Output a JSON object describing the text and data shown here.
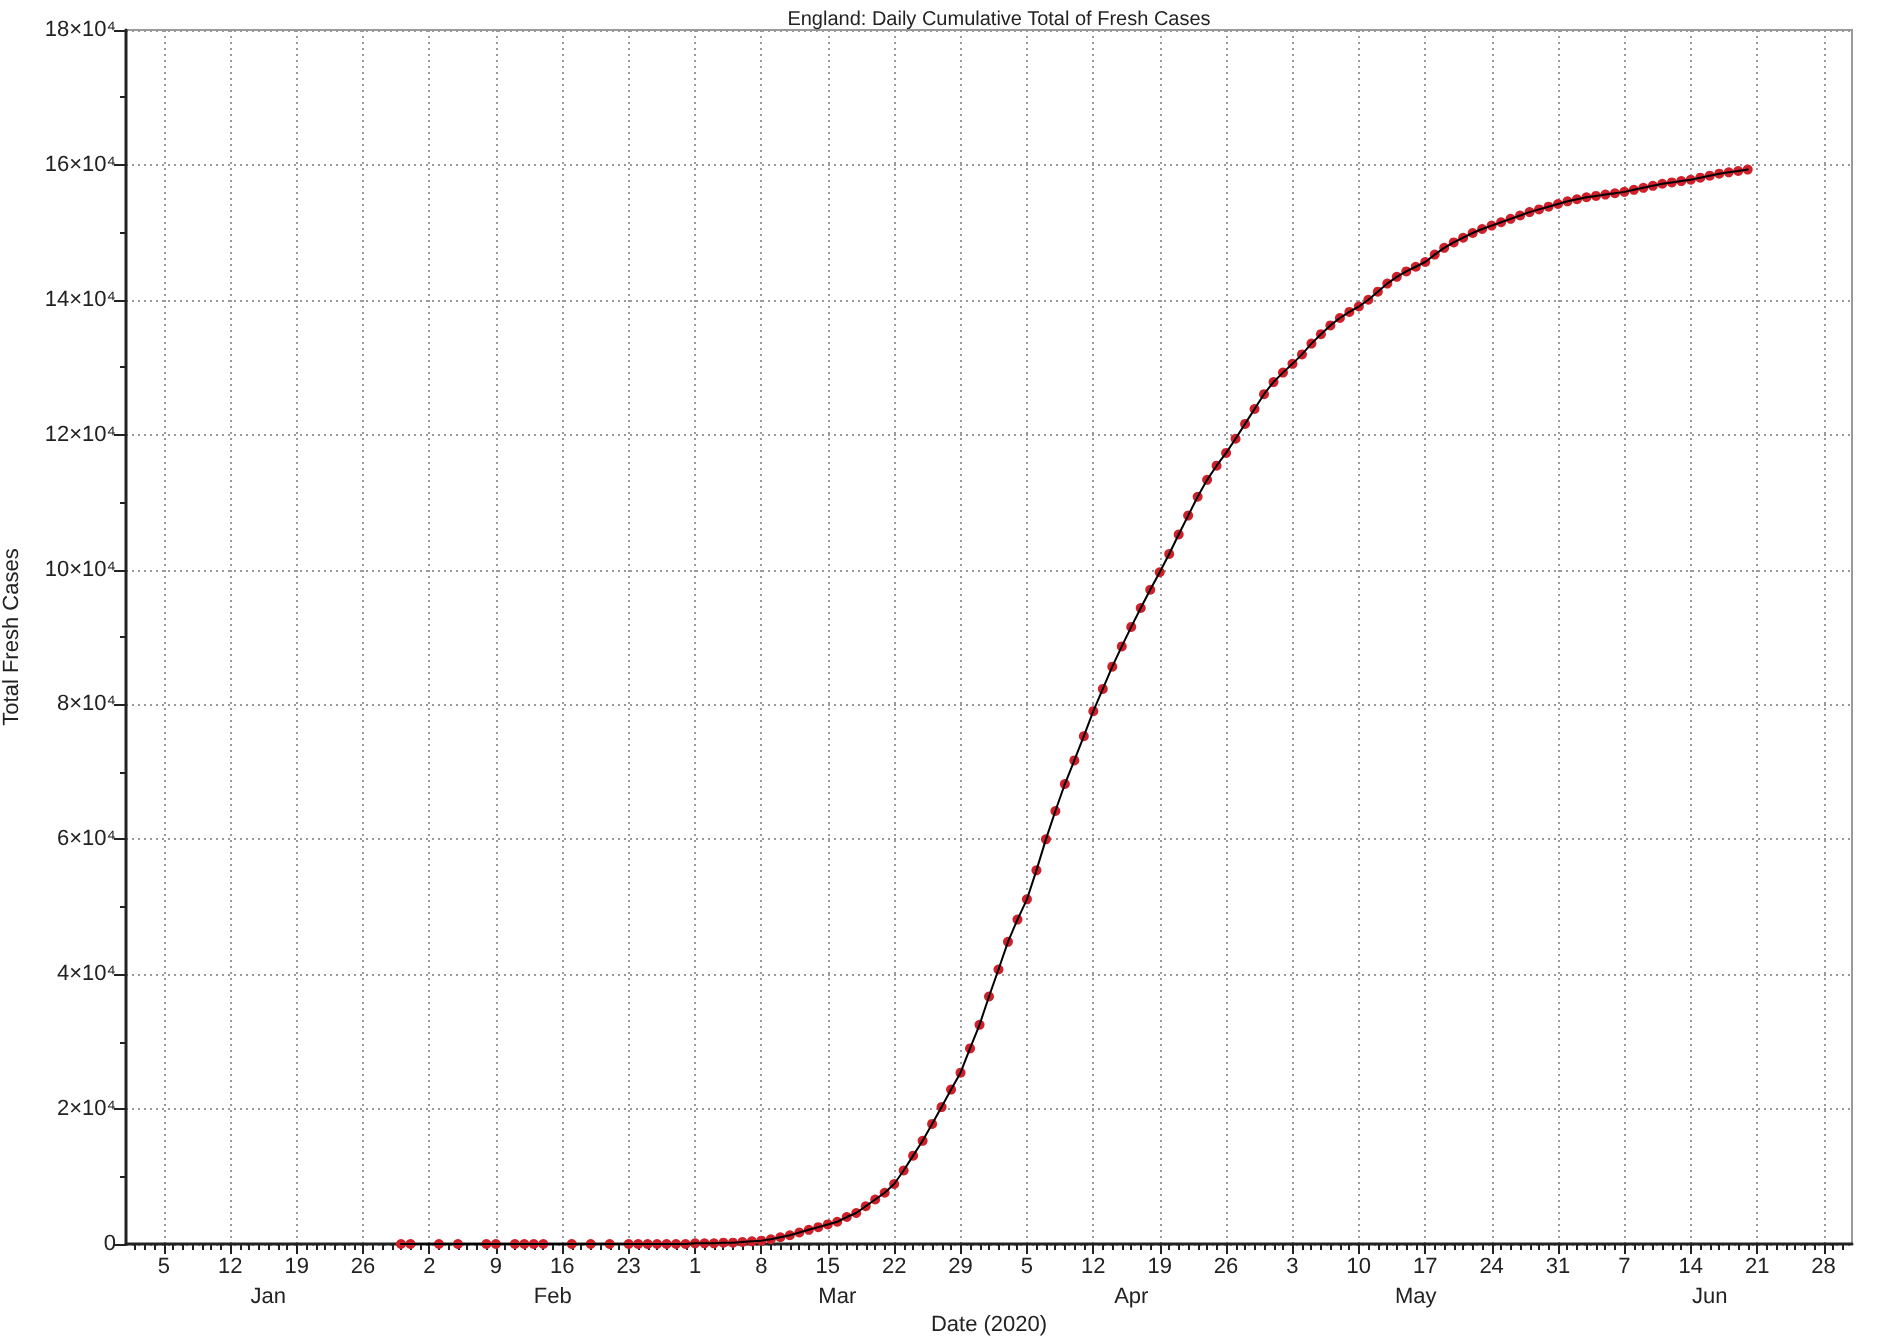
{
  "chart_data": {
    "type": "line",
    "title": "England: Daily Cumulative Total of Fresh Cases",
    "xlabel": "Date (2020)",
    "ylabel": "Total Fresh Cases",
    "grid": true,
    "marker": "circle",
    "xlim": [
      "2020-01-01",
      "2020-07-01"
    ],
    "ylim": [
      0,
      180000
    ],
    "xticks": [
      {
        "value": "2020-01-02",
        "label": null
      },
      {
        "value": "2020-01-03",
        "label": null
      },
      {
        "value": "2020-01-04",
        "label": null
      },
      {
        "value": "2020-01-05",
        "label": "5"
      },
      {
        "value": "2020-01-06",
        "label": null
      },
      {
        "value": "2020-01-07",
        "label": null
      },
      {
        "value": "2020-01-08",
        "label": null
      },
      {
        "value": "2020-01-09",
        "label": null
      },
      {
        "value": "2020-01-10",
        "label": null
      },
      {
        "value": "2020-01-11",
        "label": null
      },
      {
        "value": "2020-01-12",
        "label": "12"
      },
      {
        "value": "2020-01-13",
        "label": null
      },
      {
        "value": "2020-01-14",
        "label": null
      },
      {
        "value": "2020-01-15",
        "label": null
      },
      {
        "value": "2020-01-16",
        "label": null
      },
      {
        "value": "2020-01-17",
        "label": null
      },
      {
        "value": "2020-01-18",
        "label": null
      },
      {
        "value": "2020-01-19",
        "label": "19"
      },
      {
        "value": "2020-01-20",
        "label": null
      },
      {
        "value": "2020-01-21",
        "label": null
      },
      {
        "value": "2020-01-22",
        "label": null
      },
      {
        "value": "2020-01-23",
        "label": null
      },
      {
        "value": "2020-01-24",
        "label": null
      },
      {
        "value": "2020-01-25",
        "label": null
      },
      {
        "value": "2020-01-26",
        "label": "26"
      },
      {
        "value": "2020-01-27",
        "label": null
      },
      {
        "value": "2020-01-28",
        "label": null
      },
      {
        "value": "2020-01-29",
        "label": null
      },
      {
        "value": "2020-01-30",
        "label": null
      },
      {
        "value": "2020-01-31",
        "label": null
      },
      {
        "value": "2020-02-01",
        "label": null
      },
      {
        "value": "2020-02-02",
        "label": "2"
      },
      {
        "value": "2020-02-03",
        "label": null
      },
      {
        "value": "2020-02-04",
        "label": null
      },
      {
        "value": "2020-02-05",
        "label": null
      },
      {
        "value": "2020-02-06",
        "label": null
      },
      {
        "value": "2020-02-07",
        "label": null
      },
      {
        "value": "2020-02-08",
        "label": null
      },
      {
        "value": "2020-02-09",
        "label": "9"
      },
      {
        "value": "2020-02-10",
        "label": null
      },
      {
        "value": "2020-02-11",
        "label": null
      },
      {
        "value": "2020-02-12",
        "label": null
      },
      {
        "value": "2020-02-13",
        "label": null
      },
      {
        "value": "2020-02-14",
        "label": null
      },
      {
        "value": "2020-02-15",
        "label": null
      },
      {
        "value": "2020-02-16",
        "label": "16"
      },
      {
        "value": "2020-02-17",
        "label": null
      },
      {
        "value": "2020-02-18",
        "label": null
      },
      {
        "value": "2020-02-19",
        "label": null
      },
      {
        "value": "2020-02-20",
        "label": null
      },
      {
        "value": "2020-02-21",
        "label": null
      },
      {
        "value": "2020-02-22",
        "label": null
      },
      {
        "value": "2020-02-23",
        "label": "23"
      },
      {
        "value": "2020-02-24",
        "label": null
      },
      {
        "value": "2020-02-25",
        "label": null
      },
      {
        "value": "2020-02-26",
        "label": null
      },
      {
        "value": "2020-02-27",
        "label": null
      },
      {
        "value": "2020-02-28",
        "label": null
      },
      {
        "value": "2020-02-29",
        "label": null
      },
      {
        "value": "2020-03-01",
        "label": "1"
      },
      {
        "value": "2020-03-02",
        "label": null
      },
      {
        "value": "2020-03-03",
        "label": null
      },
      {
        "value": "2020-03-04",
        "label": null
      },
      {
        "value": "2020-03-05",
        "label": null
      },
      {
        "value": "2020-03-06",
        "label": null
      },
      {
        "value": "2020-03-07",
        "label": null
      },
      {
        "value": "2020-03-08",
        "label": "8"
      },
      {
        "value": "2020-03-09",
        "label": null
      },
      {
        "value": "2020-03-10",
        "label": null
      },
      {
        "value": "2020-03-11",
        "label": null
      },
      {
        "value": "2020-03-12",
        "label": null
      },
      {
        "value": "2020-03-13",
        "label": null
      },
      {
        "value": "2020-03-14",
        "label": null
      },
      {
        "value": "2020-03-15",
        "label": "15"
      },
      {
        "value": "2020-03-16",
        "label": null
      },
      {
        "value": "2020-03-17",
        "label": null
      },
      {
        "value": "2020-03-18",
        "label": null
      },
      {
        "value": "2020-03-19",
        "label": null
      },
      {
        "value": "2020-03-20",
        "label": null
      },
      {
        "value": "2020-03-21",
        "label": null
      },
      {
        "value": "2020-03-22",
        "label": "22"
      },
      {
        "value": "2020-03-23",
        "label": null
      },
      {
        "value": "2020-03-24",
        "label": null
      },
      {
        "value": "2020-03-25",
        "label": null
      },
      {
        "value": "2020-03-26",
        "label": null
      },
      {
        "value": "2020-03-27",
        "label": null
      },
      {
        "value": "2020-03-28",
        "label": null
      },
      {
        "value": "2020-03-29",
        "label": "29"
      },
      {
        "value": "2020-03-30",
        "label": null
      },
      {
        "value": "2020-03-31",
        "label": null
      },
      {
        "value": "2020-04-01",
        "label": null
      },
      {
        "value": "2020-04-02",
        "label": null
      },
      {
        "value": "2020-04-03",
        "label": null
      },
      {
        "value": "2020-04-04",
        "label": null
      },
      {
        "value": "2020-04-05",
        "label": "5"
      },
      {
        "value": "2020-04-06",
        "label": null
      },
      {
        "value": "2020-04-07",
        "label": null
      },
      {
        "value": "2020-04-08",
        "label": null
      },
      {
        "value": "2020-04-09",
        "label": null
      },
      {
        "value": "2020-04-10",
        "label": null
      },
      {
        "value": "2020-04-11",
        "label": null
      },
      {
        "value": "2020-04-12",
        "label": "12"
      },
      {
        "value": "2020-04-13",
        "label": null
      },
      {
        "value": "2020-04-14",
        "label": null
      },
      {
        "value": "2020-04-15",
        "label": null
      },
      {
        "value": "2020-04-16",
        "label": null
      },
      {
        "value": "2020-04-17",
        "label": null
      },
      {
        "value": "2020-04-18",
        "label": null
      },
      {
        "value": "2020-04-19",
        "label": "19"
      },
      {
        "value": "2020-04-20",
        "label": null
      },
      {
        "value": "2020-04-21",
        "label": null
      },
      {
        "value": "2020-04-22",
        "label": null
      },
      {
        "value": "2020-04-23",
        "label": null
      },
      {
        "value": "2020-04-24",
        "label": null
      },
      {
        "value": "2020-04-25",
        "label": null
      },
      {
        "value": "2020-04-26",
        "label": "26"
      },
      {
        "value": "2020-04-27",
        "label": null
      },
      {
        "value": "2020-04-28",
        "label": null
      },
      {
        "value": "2020-04-29",
        "label": null
      },
      {
        "value": "2020-04-30",
        "label": null
      },
      {
        "value": "2020-05-01",
        "label": null
      },
      {
        "value": "2020-05-02",
        "label": null
      },
      {
        "value": "2020-05-03",
        "label": "3"
      },
      {
        "value": "2020-05-04",
        "label": null
      },
      {
        "value": "2020-05-05",
        "label": null
      },
      {
        "value": "2020-05-06",
        "label": null
      },
      {
        "value": "2020-05-07",
        "label": null
      },
      {
        "value": "2020-05-08",
        "label": null
      },
      {
        "value": "2020-05-09",
        "label": null
      },
      {
        "value": "2020-05-10",
        "label": "10"
      },
      {
        "value": "2020-05-11",
        "label": null
      },
      {
        "value": "2020-05-12",
        "label": null
      },
      {
        "value": "2020-05-13",
        "label": null
      },
      {
        "value": "2020-05-14",
        "label": null
      },
      {
        "value": "2020-05-15",
        "label": null
      },
      {
        "value": "2020-05-16",
        "label": null
      },
      {
        "value": "2020-05-17",
        "label": "17"
      },
      {
        "value": "2020-05-18",
        "label": null
      },
      {
        "value": "2020-05-19",
        "label": null
      },
      {
        "value": "2020-05-20",
        "label": null
      },
      {
        "value": "2020-05-21",
        "label": null
      },
      {
        "value": "2020-05-22",
        "label": null
      },
      {
        "value": "2020-05-23",
        "label": null
      },
      {
        "value": "2020-05-24",
        "label": "24"
      },
      {
        "value": "2020-05-25",
        "label": null
      },
      {
        "value": "2020-05-26",
        "label": null
      },
      {
        "value": "2020-05-27",
        "label": null
      },
      {
        "value": "2020-05-28",
        "label": null
      },
      {
        "value": "2020-05-29",
        "label": null
      },
      {
        "value": "2020-05-30",
        "label": null
      },
      {
        "value": "2020-05-31",
        "label": "31"
      },
      {
        "value": "2020-06-01",
        "label": null
      },
      {
        "value": "2020-06-02",
        "label": null
      },
      {
        "value": "2020-06-03",
        "label": null
      },
      {
        "value": "2020-06-04",
        "label": null
      },
      {
        "value": "2020-06-05",
        "label": null
      },
      {
        "value": "2020-06-06",
        "label": null
      },
      {
        "value": "2020-06-07",
        "label": "7"
      },
      {
        "value": "2020-06-08",
        "label": null
      },
      {
        "value": "2020-06-09",
        "label": null
      },
      {
        "value": "2020-06-10",
        "label": null
      },
      {
        "value": "2020-06-11",
        "label": null
      },
      {
        "value": "2020-06-12",
        "label": null
      },
      {
        "value": "2020-06-13",
        "label": null
      },
      {
        "value": "2020-06-14",
        "label": "14"
      },
      {
        "value": "2020-06-15",
        "label": null
      },
      {
        "value": "2020-06-16",
        "label": null
      },
      {
        "value": "2020-06-17",
        "label": null
      },
      {
        "value": "2020-06-18",
        "label": null
      },
      {
        "value": "2020-06-19",
        "label": null
      },
      {
        "value": "2020-06-20",
        "label": null
      },
      {
        "value": "2020-06-21",
        "label": "21"
      },
      {
        "value": "2020-06-22",
        "label": null
      },
      {
        "value": "2020-06-23",
        "label": null
      },
      {
        "value": "2020-06-24",
        "label": null
      },
      {
        "value": "2020-06-25",
        "label": null
      },
      {
        "value": "2020-06-26",
        "label": null
      },
      {
        "value": "2020-06-27",
        "label": null
      },
      {
        "value": "2020-06-28",
        "label": "28"
      },
      {
        "value": "2020-06-29",
        "label": null
      },
      {
        "value": "2020-06-30",
        "label": null
      }
    ],
    "x2lim": [
      "2020-01-01",
      "2020-07-01"
    ],
    "x2ticks": [
      {
        "value": "2020-01-16",
        "label": "Jan"
      },
      {
        "value": "2020-02-15",
        "label": "Feb"
      },
      {
        "value": "2020-03-16",
        "label": "Mar"
      },
      {
        "value": "2020-04-16",
        "label": "Apr"
      },
      {
        "value": "2020-05-16",
        "label": "May"
      },
      {
        "value": "2020-06-16",
        "label": "Jun"
      }
    ],
    "yticks": [
      0,
      {
        "value": 10000,
        "label": null
      },
      {
        "value": 20000,
        "label": "2×10⁴"
      },
      {
        "value": 30000,
        "label": null
      },
      {
        "value": 40000,
        "label": "4×10⁴"
      },
      {
        "value": 50000,
        "label": null
      },
      {
        "value": 60000,
        "label": "6×10⁴"
      },
      {
        "value": 70000,
        "label": null
      },
      {
        "value": 80000,
        "label": "8×10⁴"
      },
      {
        "value": 90000,
        "label": null
      },
      {
        "value": 100000,
        "label": "10×10⁴"
      },
      {
        "value": 110000,
        "label": null
      },
      {
        "value": 120000,
        "label": "12×10⁴"
      },
      {
        "value": 130000,
        "label": null
      },
      {
        "value": 140000,
        "label": "14×10⁴"
      },
      {
        "value": 150000,
        "label": null
      },
      {
        "value": 160000,
        "label": "16×10⁴"
      },
      {
        "value": 170000,
        "label": null
      },
      {
        "value": 180000,
        "label": "18×10⁴"
      }
    ],
    "x": [
      "2020-01-30",
      "2020-01-31",
      "2020-02-03",
      "2020-02-05",
      "2020-02-08",
      "2020-02-09",
      "2020-02-11",
      "2020-02-12",
      "2020-02-13",
      "2020-02-14",
      "2020-02-17",
      "2020-02-19",
      "2020-02-21",
      "2020-02-23",
      "2020-02-24",
      "2020-02-25",
      "2020-02-26",
      "2020-02-27",
      "2020-02-28",
      "2020-02-29",
      "2020-03-01",
      "2020-03-02",
      "2020-03-03",
      "2020-03-04",
      "2020-03-05",
      "2020-03-06",
      "2020-03-07",
      "2020-03-08",
      "2020-03-09",
      "2020-03-10",
      "2020-03-11",
      "2020-03-12",
      "2020-03-13",
      "2020-03-14",
      "2020-03-15",
      "2020-03-16",
      "2020-03-17",
      "2020-03-18",
      "2020-03-19",
      "2020-03-20",
      "2020-03-21",
      "2020-03-22",
      "2020-03-23",
      "2020-03-24",
      "2020-03-25",
      "2020-03-26",
      "2020-03-27",
      "2020-03-28",
      "2020-03-29",
      "2020-03-30",
      "2020-03-31",
      "2020-04-01",
      "2020-04-02",
      "2020-04-03",
      "2020-04-04",
      "2020-04-05",
      "2020-04-06",
      "2020-04-07",
      "2020-04-08",
      "2020-04-09",
      "2020-04-10",
      "2020-04-11",
      "2020-04-12",
      "2020-04-13",
      "2020-04-14",
      "2020-04-15",
      "2020-04-16",
      "2020-04-17",
      "2020-04-18",
      "2020-04-19",
      "2020-04-20",
      "2020-04-21",
      "2020-04-22",
      "2020-04-23",
      "2020-04-24",
      "2020-04-25",
      "2020-04-26",
      "2020-04-27",
      "2020-04-28",
      "2020-04-29",
      "2020-04-30",
      "2020-05-01",
      "2020-05-02",
      "2020-05-03",
      "2020-05-04",
      "2020-05-05",
      "2020-05-06",
      "2020-05-07",
      "2020-05-08",
      "2020-05-09",
      "2020-05-10",
      "2020-05-11",
      "2020-05-12",
      "2020-05-13",
      "2020-05-14",
      "2020-05-15",
      "2020-05-16",
      "2020-05-17",
      "2020-05-18",
      "2020-05-19",
      "2020-05-20",
      "2020-05-21",
      "2020-05-22",
      "2020-05-23",
      "2020-05-24",
      "2020-05-25",
      "2020-05-26",
      "2020-05-27",
      "2020-05-28",
      "2020-05-29",
      "2020-05-30",
      "2020-05-31",
      "2020-06-01",
      "2020-06-02",
      "2020-06-03",
      "2020-06-04",
      "2020-06-05",
      "2020-06-06",
      "2020-06-07",
      "2020-06-08",
      "2020-06-09",
      "2020-06-10",
      "2020-06-11",
      "2020-06-12",
      "2020-06-13",
      "2020-06-14",
      "2020-06-15",
      "2020-06-16",
      "2020-06-17",
      "2020-06-18",
      "2020-06-19",
      "2020-06-20"
    ],
    "series": [
      {
        "type": "scatter",
        "color": "#d0202a",
        "values": [
          0,
          0,
          0,
          0,
          0,
          0,
          0,
          0,
          0,
          0,
          0,
          0,
          0,
          0,
          0,
          0,
          0,
          0,
          0,
          0,
          100,
          100,
          100,
          200,
          200,
          300,
          400,
          500,
          700,
          1000,
          1300,
          1700,
          2100,
          2500,
          2900,
          3300,
          4000,
          4600,
          5600,
          6600,
          7600,
          8900,
          10900,
          13100,
          15300,
          17800,
          20300,
          22900,
          25400,
          29000,
          32500,
          36700,
          40700,
          44800,
          48100,
          51100,
          55400,
          60000,
          64200,
          68200,
          71700,
          75300,
          79000,
          82300,
          85600,
          88600,
          91500,
          94300,
          97000,
          99600,
          102300,
          105200,
          108000,
          110800,
          113300,
          115400,
          117300,
          119400,
          121600,
          123800,
          126000,
          127800,
          129200,
          130500,
          131900,
          133500,
          134900,
          136200,
          137300,
          138200,
          139000,
          140000,
          141200,
          142400,
          143400,
          144200,
          144900,
          145600,
          146700,
          147700,
          148500,
          149200,
          149900,
          150500,
          151000,
          151500,
          152000,
          152500,
          153000,
          153400,
          153800,
          154200,
          154600,
          154900,
          155200,
          155400,
          155600,
          155800,
          156000,
          156300,
          156600,
          156900,
          157200,
          157400,
          157600,
          157800,
          158100,
          158400,
          158700,
          158900,
          159100,
          159300
        ]
      },
      {
        "marker": "none",
        "color": "#000000",
        "values": [
          0,
          0,
          0,
          0,
          0,
          0,
          0,
          0,
          0,
          0,
          0,
          0,
          0,
          0,
          0,
          0,
          0,
          0,
          0,
          0,
          100,
          100,
          100,
          200,
          200,
          300,
          400,
          500,
          700,
          1000,
          1300,
          1700,
          2100,
          2500,
          2900,
          3300,
          4000,
          4600,
          5600,
          6600,
          7600,
          8900,
          10900,
          13100,
          15300,
          17800,
          20300,
          22900,
          25400,
          29000,
          32500,
          36700,
          40700,
          44800,
          48100,
          51100,
          55400,
          60000,
          64200,
          68200,
          71700,
          75300,
          79000,
          82300,
          85600,
          88600,
          91500,
          94300,
          97000,
          99600,
          102300,
          105200,
          108000,
          110800,
          113300,
          115400,
          117300,
          119400,
          121600,
          123800,
          126000,
          127800,
          129200,
          130500,
          131900,
          133500,
          134900,
          136200,
          137300,
          138200,
          139000,
          140000,
          141200,
          142400,
          143400,
          144200,
          144900,
          145600,
          146700,
          147700,
          148500,
          149200,
          149900,
          150500,
          151000,
          151500,
          152000,
          152500,
          153000,
          153400,
          153800,
          154200,
          154600,
          154900,
          155200,
          155400,
          155600,
          155800,
          156000,
          156300,
          156600,
          156900,
          157200,
          157400,
          157600,
          157800,
          158100,
          158400,
          158700,
          158900,
          159100,
          159300
        ]
      }
    ]
  }
}
